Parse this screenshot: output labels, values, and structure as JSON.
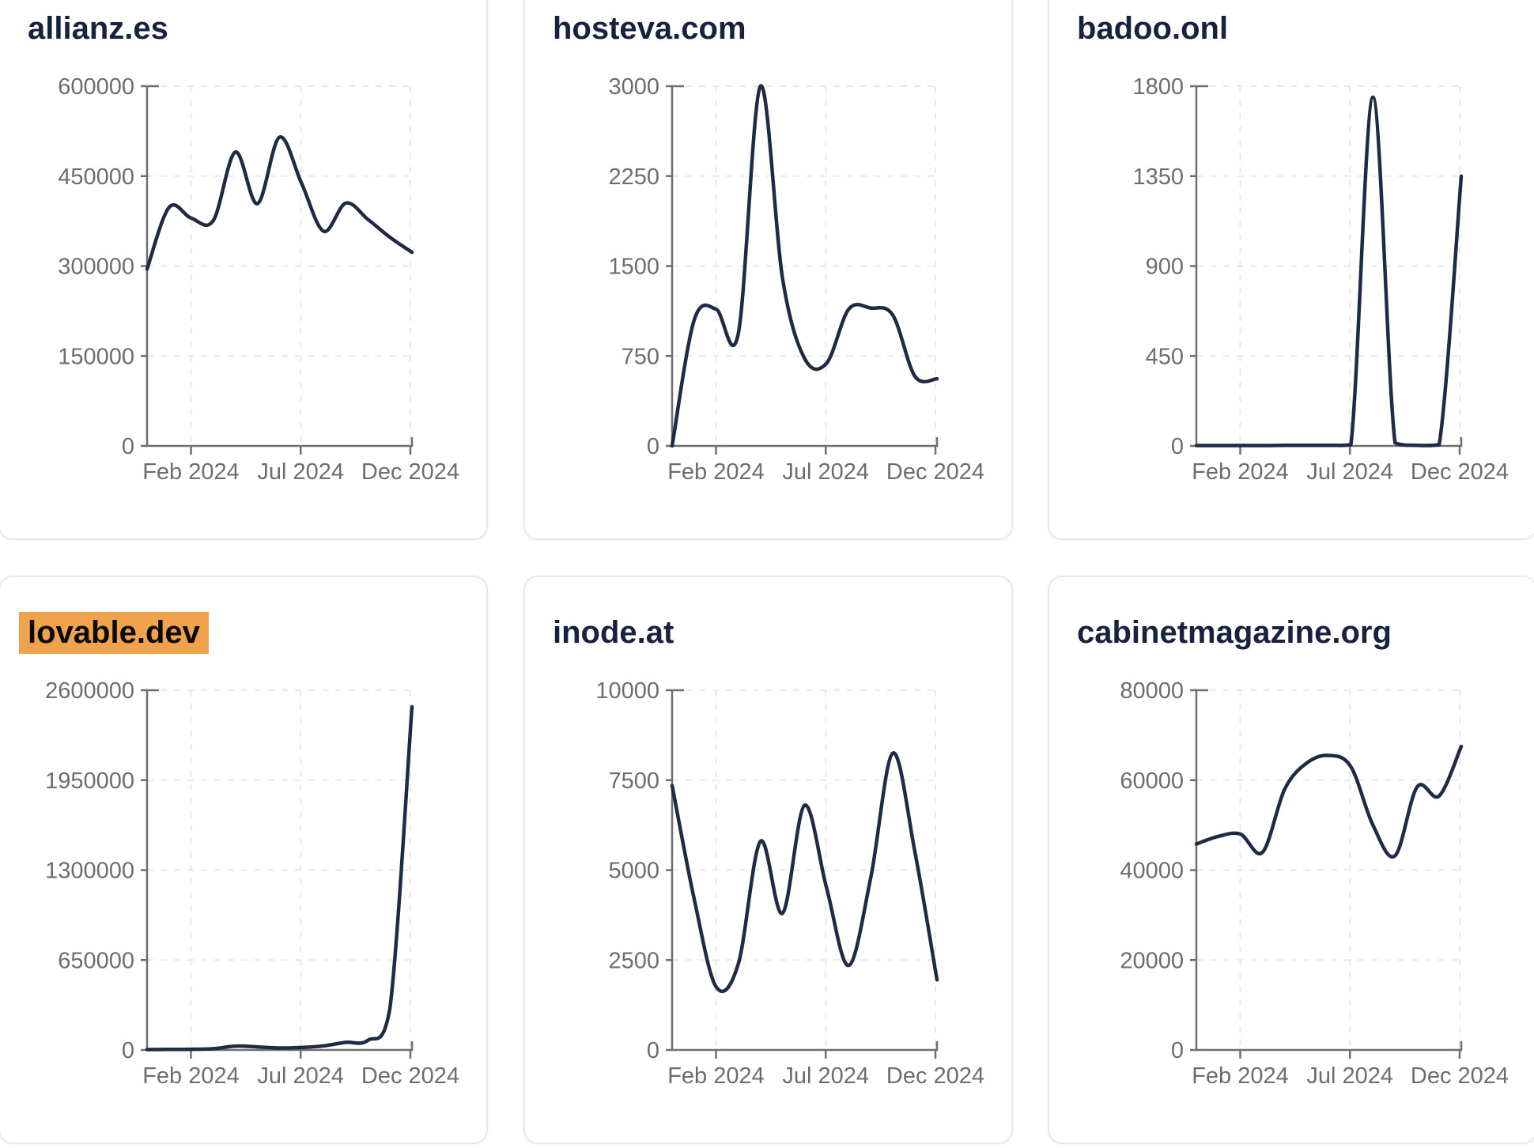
{
  "page": {
    "background": "#ffffff"
  },
  "colors": {
    "series_line": "#1f2a44",
    "title_text": "#17223f",
    "tick_label": "#6d6d6d",
    "axis_line": "#6f6f6f",
    "gridline": "#e9e9e9",
    "card_border": "#e4e9f1",
    "highlight_background": "#f0a24c",
    "highlight_text": "#0a0a0a"
  },
  "chart_data": [
    {
      "type": "line",
      "title": "allianz.es",
      "highlighted": false,
      "x_range": [
        "Dec 2023",
        "Dec 2024"
      ],
      "x_ticks": [
        {
          "label": "Feb 2024",
          "m": 2
        },
        {
          "label": "Jul 2024",
          "m": 7
        },
        {
          "label": "Dec 2024",
          "m": 12
        }
      ],
      "ylim": [
        0,
        600000
      ],
      "yticks": [
        0,
        150000,
        300000,
        450000,
        600000
      ],
      "values": [
        295000,
        398000,
        380000,
        376000,
        490000,
        404000,
        515000,
        438000,
        358000,
        405000,
        378000,
        348000,
        323000
      ]
    },
    {
      "type": "line",
      "title": "hosteva.com",
      "highlighted": false,
      "x_range": [
        "Dec 2023",
        "Dec 2024"
      ],
      "x_ticks": [
        {
          "label": "Feb 2024",
          "m": 2
        },
        {
          "label": "Jul 2024",
          "m": 7
        },
        {
          "label": "Dec 2024",
          "m": 12
        }
      ],
      "ylim": [
        0,
        3000
      ],
      "yticks": [
        0,
        750,
        1500,
        2250,
        3000
      ],
      "values": [
        0,
        1050,
        1140,
        940,
        3000,
        1400,
        730,
        690,
        1140,
        1150,
        1090,
        580,
        560
      ]
    },
    {
      "type": "line",
      "title": "badoo.onl",
      "highlighted": false,
      "x_range": [
        "Dec 2023",
        "Dec 2024"
      ],
      "x_ticks": [
        {
          "label": "Feb 2024",
          "m": 2
        },
        {
          "label": "Jul 2024",
          "m": 7
        },
        {
          "label": "Dec 2024",
          "m": 12
        }
      ],
      "ylim": [
        0,
        1800
      ],
      "yticks": [
        0,
        450,
        900,
        1350,
        1800
      ],
      "values": [
        2,
        2,
        2,
        2,
        3,
        3,
        3,
        6,
        1745,
        15,
        3,
        6,
        1350
      ]
    },
    {
      "type": "line",
      "title": "lovable.dev",
      "highlighted": true,
      "x_range": [
        "Dec 2023",
        "Dec 2024"
      ],
      "x_ticks": [
        {
          "label": "Feb 2024",
          "m": 2
        },
        {
          "label": "Jul 2024",
          "m": 7
        },
        {
          "label": "Dec 2024",
          "m": 12
        }
      ],
      "ylim": [
        0,
        2600000
      ],
      "yticks": [
        0,
        650000,
        1300000,
        1950000,
        2600000
      ],
      "values": [
        3000,
        4000,
        5000,
        9000,
        28000,
        22000,
        14000,
        18000,
        30000,
        55000,
        70000,
        300000,
        2480000
      ]
    },
    {
      "type": "line",
      "title": "inode.at",
      "highlighted": false,
      "x_range": [
        "Dec 2023",
        "Dec 2024"
      ],
      "x_ticks": [
        {
          "label": "Feb 2024",
          "m": 2
        },
        {
          "label": "Jul 2024",
          "m": 7
        },
        {
          "label": "Dec 2024",
          "m": 12
        }
      ],
      "ylim": [
        0,
        10000
      ],
      "yticks": [
        0,
        2500,
        5000,
        7500,
        10000
      ],
      "values": [
        7350,
        4200,
        1750,
        2400,
        5800,
        3800,
        6800,
        4500,
        2350,
        4800,
        8250,
        5500,
        1950
      ]
    },
    {
      "type": "line",
      "title": "cabinetmagazine.org",
      "highlighted": false,
      "x_range": [
        "Dec 2023",
        "Dec 2024"
      ],
      "x_ticks": [
        {
          "label": "Feb 2024",
          "m": 2
        },
        {
          "label": "Jul 2024",
          "m": 7
        },
        {
          "label": "Dec 2024",
          "m": 12
        }
      ],
      "ylim": [
        0,
        80000
      ],
      "yticks": [
        0,
        20000,
        40000,
        60000,
        80000
      ],
      "values": [
        45800,
        47500,
        48000,
        44000,
        58000,
        63800,
        65500,
        63000,
        50000,
        43200,
        58500,
        56500,
        67500
      ]
    }
  ]
}
